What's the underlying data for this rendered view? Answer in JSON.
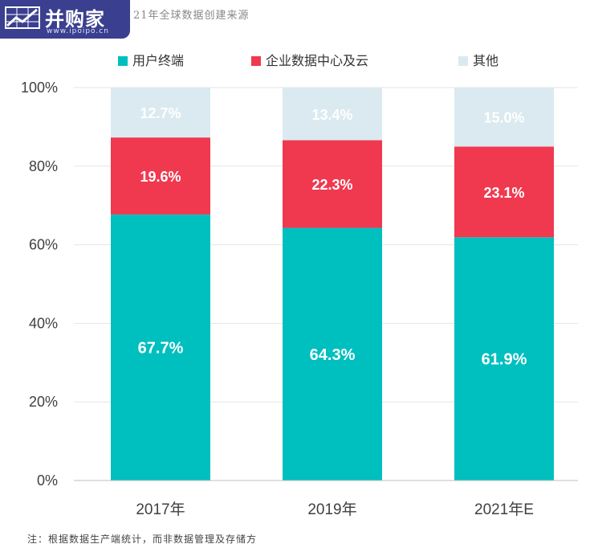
{
  "brand": {
    "name": "并购家",
    "url": "www.ipoipo.cn"
  },
  "title": "21年全球数据创建来源",
  "chart_data": {
    "type": "bar",
    "stacked": true,
    "categories": [
      "2017年",
      "2019年",
      "2021年E"
    ],
    "series": [
      {
        "name": "用户终端",
        "values": [
          67.7,
          64.3,
          61.9
        ],
        "labels": [
          "67.7%",
          "64.3%",
          "61.9%"
        ],
        "color": "#00bfbf"
      },
      {
        "name": "企业数据中心及云",
        "values": [
          19.6,
          22.3,
          23.1
        ],
        "labels": [
          "19.6%",
          "22.3%",
          "23.1%"
        ],
        "color": "#f0394f"
      },
      {
        "name": "其他",
        "values": [
          12.7,
          13.4,
          15.0
        ],
        "labels": [
          "12.7%",
          "13.4%",
          "15.0%"
        ],
        "color": "#daeaf0"
      }
    ],
    "yticks": [
      "0%",
      "20%",
      "40%",
      "60%",
      "80%",
      "100%"
    ],
    "ylim": [
      0,
      100
    ],
    "grid": true,
    "legend_position": "top"
  },
  "note": "注：根据数据生产端统计，而非数据管理及存储方"
}
